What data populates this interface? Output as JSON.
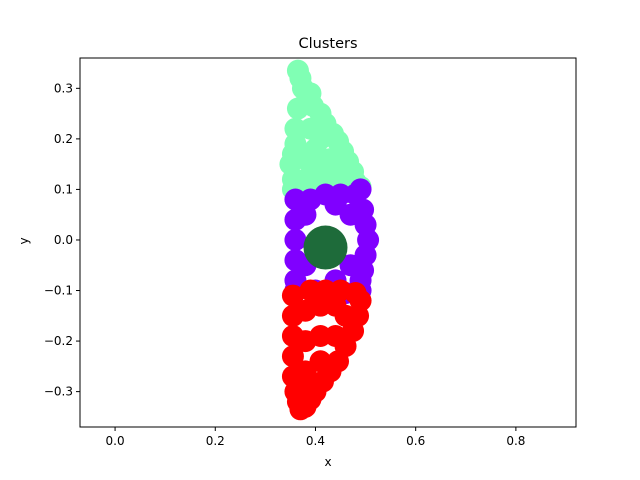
{
  "chart_data": {
    "type": "scatter",
    "title": "Clusters",
    "xlabel": "x",
    "ylabel": "y",
    "xlim": [
      -0.07,
      0.92
    ],
    "ylim": [
      -0.37,
      0.36
    ],
    "xticks": [
      0.0,
      0.2,
      0.4,
      0.6,
      0.8
    ],
    "xtick_labels": [
      "0.0",
      "0.2",
      "0.4",
      "0.6",
      "0.8"
    ],
    "yticks": [
      -0.3,
      -0.2,
      -0.1,
      0.0,
      0.1,
      0.2,
      0.3
    ],
    "ytick_labels": [
      "−0.3",
      "−0.2",
      "−0.1",
      "0.0",
      "0.1",
      "0.2",
      "0.3"
    ],
    "grid": false,
    "series": [
      {
        "color": "#80ffb4",
        "points": [
          [
            0.365,
            0.335
          ],
          [
            0.37,
            0.32
          ],
          [
            0.375,
            0.3
          ],
          [
            0.39,
            0.29
          ],
          [
            0.395,
            0.265
          ],
          [
            0.41,
            0.25
          ],
          [
            0.42,
            0.23
          ],
          [
            0.435,
            0.21
          ],
          [
            0.445,
            0.195
          ],
          [
            0.455,
            0.175
          ],
          [
            0.465,
            0.155
          ],
          [
            0.475,
            0.135
          ],
          [
            0.48,
            0.115
          ],
          [
            0.49,
            0.105
          ],
          [
            0.355,
            0.17
          ],
          [
            0.35,
            0.15
          ],
          [
            0.355,
            0.12
          ],
          [
            0.355,
            0.1
          ],
          [
            0.36,
            0.08
          ],
          [
            0.365,
            0.26
          ],
          [
            0.36,
            0.22
          ],
          [
            0.36,
            0.19
          ],
          [
            0.38,
            0.27
          ],
          [
            0.39,
            0.22
          ],
          [
            0.4,
            0.18
          ],
          [
            0.4,
            0.14
          ],
          [
            0.42,
            0.12
          ],
          [
            0.43,
            0.16
          ],
          [
            0.41,
            0.2
          ],
          [
            0.38,
            0.16
          ],
          [
            0.38,
            0.12
          ],
          [
            0.44,
            0.14
          ],
          [
            0.46,
            0.12
          ],
          [
            0.45,
            0.1
          ],
          [
            0.4,
            0.1
          ],
          [
            0.37,
            0.1
          ]
        ]
      },
      {
        "color": "#8000ff",
        "points": [
          [
            0.36,
            0.08
          ],
          [
            0.36,
            0.04
          ],
          [
            0.36,
            0.0
          ],
          [
            0.36,
            -0.04
          ],
          [
            0.36,
            -0.08
          ],
          [
            0.36,
            -0.1
          ],
          [
            0.39,
            0.08
          ],
          [
            0.42,
            0.09
          ],
          [
            0.45,
            0.09
          ],
          [
            0.48,
            0.09
          ],
          [
            0.49,
            0.1
          ],
          [
            0.495,
            0.06
          ],
          [
            0.5,
            0.03
          ],
          [
            0.505,
            0.0
          ],
          [
            0.5,
            -0.03
          ],
          [
            0.495,
            -0.06
          ],
          [
            0.49,
            -0.08
          ],
          [
            0.49,
            -0.1
          ],
          [
            0.46,
            -0.105
          ],
          [
            0.43,
            -0.105
          ],
          [
            0.4,
            -0.1
          ],
          [
            0.38,
            0.05
          ],
          [
            0.38,
            -0.05
          ],
          [
            0.47,
            0.05
          ],
          [
            0.47,
            -0.05
          ],
          [
            0.44,
            0.07
          ],
          [
            0.44,
            -0.08
          ]
        ]
      },
      {
        "color": "#ff0000",
        "points": [
          [
            0.355,
            -0.11
          ],
          [
            0.355,
            -0.15
          ],
          [
            0.355,
            -0.19
          ],
          [
            0.355,
            -0.23
          ],
          [
            0.355,
            -0.27
          ],
          [
            0.36,
            -0.3
          ],
          [
            0.365,
            -0.32
          ],
          [
            0.37,
            -0.335
          ],
          [
            0.38,
            -0.33
          ],
          [
            0.39,
            -0.1
          ],
          [
            0.42,
            -0.1
          ],
          [
            0.45,
            -0.1
          ],
          [
            0.48,
            -0.105
          ],
          [
            0.49,
            -0.12
          ],
          [
            0.485,
            -0.15
          ],
          [
            0.475,
            -0.18
          ],
          [
            0.46,
            -0.21
          ],
          [
            0.445,
            -0.24
          ],
          [
            0.43,
            -0.26
          ],
          [
            0.415,
            -0.28
          ],
          [
            0.4,
            -0.3
          ],
          [
            0.39,
            -0.315
          ],
          [
            0.38,
            -0.14
          ],
          [
            0.38,
            -0.2
          ],
          [
            0.38,
            -0.26
          ],
          [
            0.41,
            -0.13
          ],
          [
            0.41,
            -0.19
          ],
          [
            0.41,
            -0.24
          ],
          [
            0.44,
            -0.13
          ],
          [
            0.44,
            -0.19
          ],
          [
            0.46,
            -0.15
          ],
          [
            0.39,
            -0.28
          ]
        ]
      },
      {
        "color": "#1e6b3a",
        "points": [
          [
            0.42,
            -0.015
          ]
        ],
        "size": "large"
      }
    ]
  }
}
